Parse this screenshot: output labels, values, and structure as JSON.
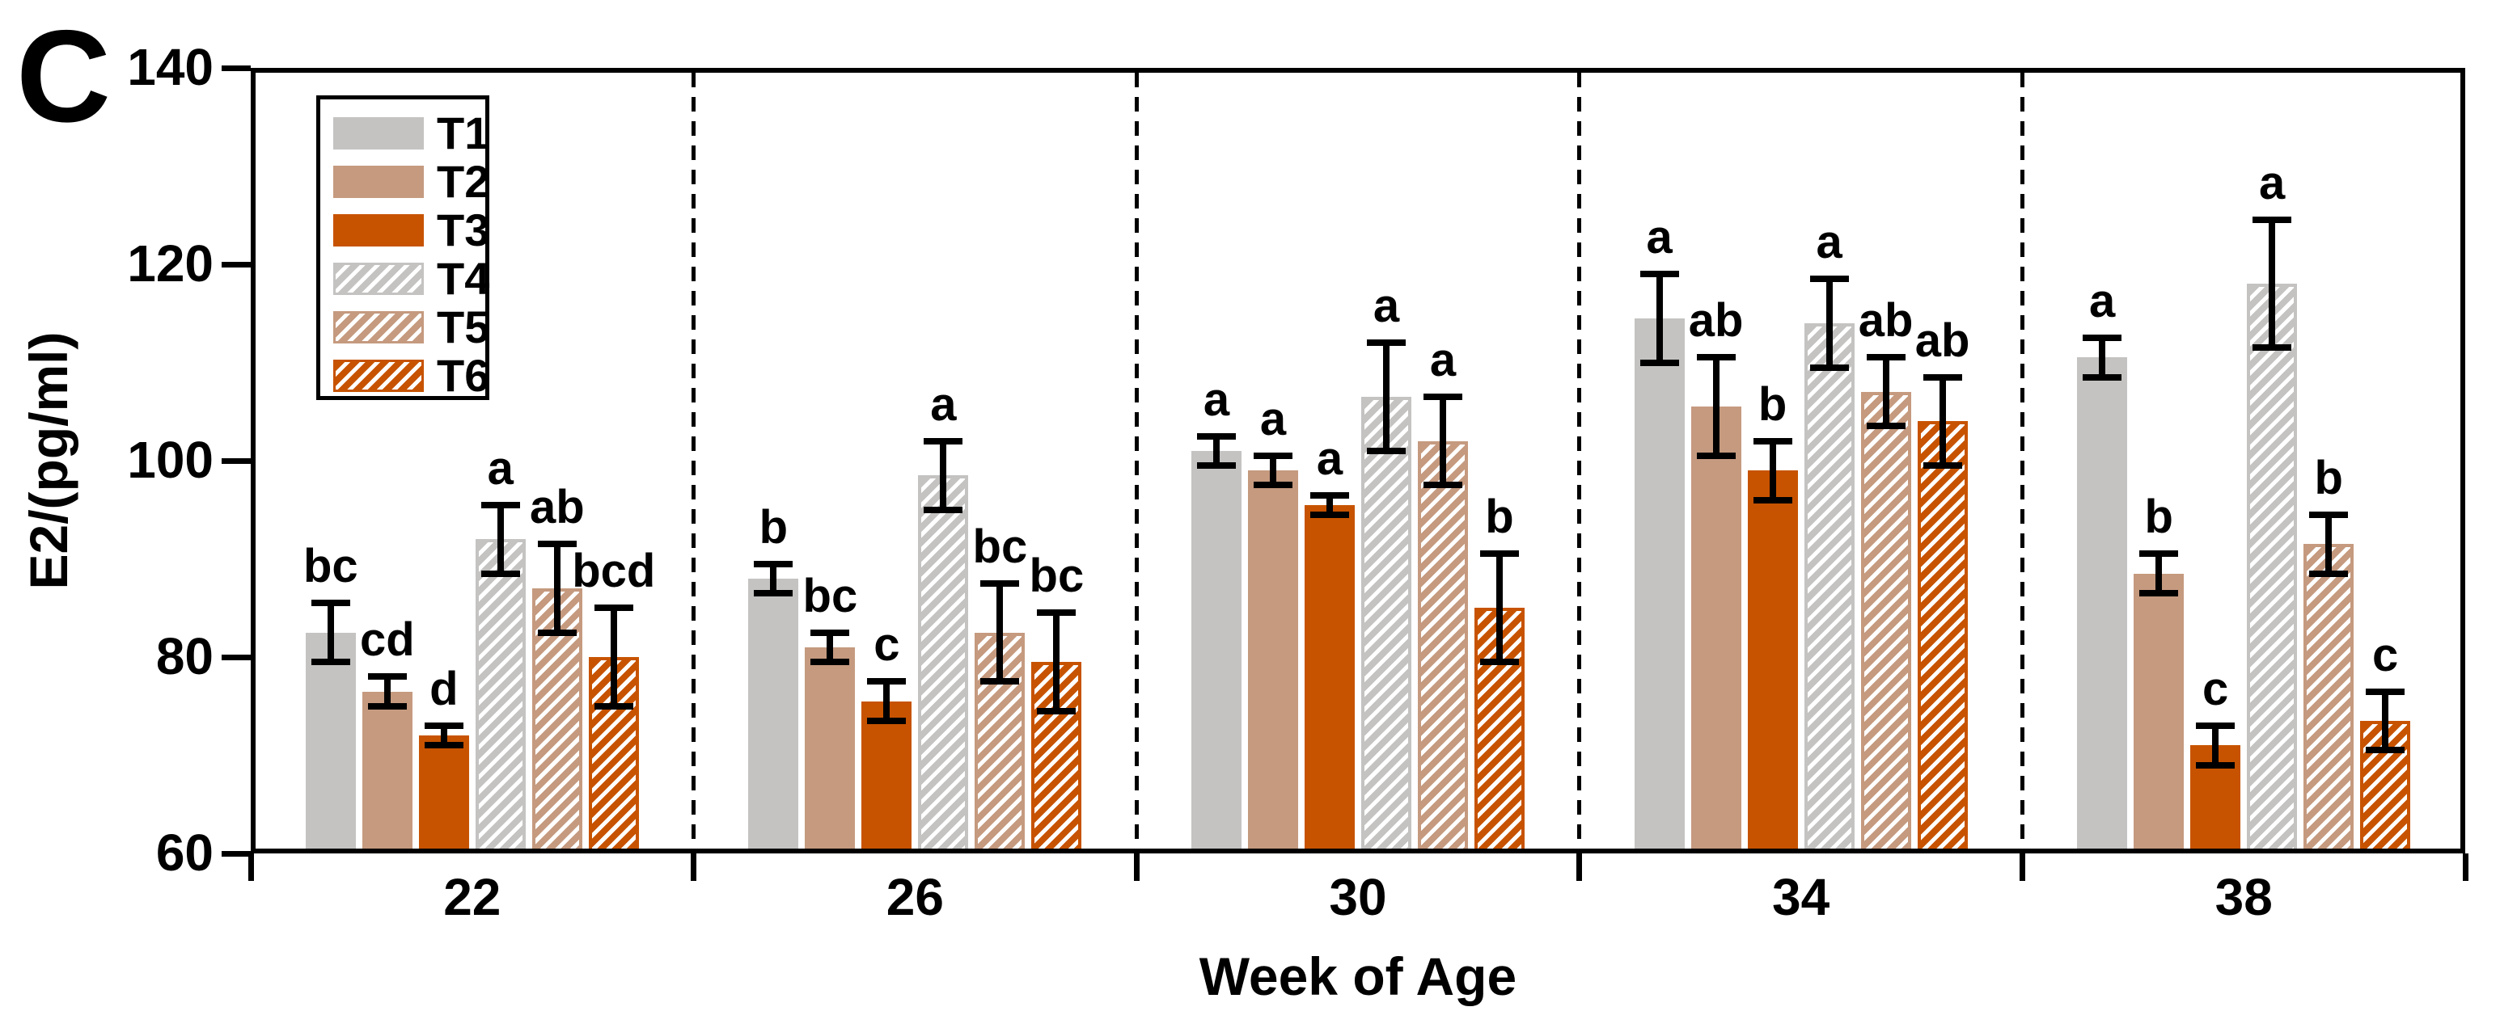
{
  "panel_label": "C",
  "axes": {
    "y_label": "E2/(pg/ml)",
    "x_label": "Week of Age",
    "y_ticks": [
      140,
      120,
      100,
      80,
      60
    ],
    "x_tick_labels": [
      "22",
      "26",
      "30",
      "34",
      "38"
    ]
  },
  "colors": {
    "gray": "#c4c3c2",
    "tan": "#c59a7f",
    "orange": "#c75300",
    "axis": "#000000",
    "hatch_stripe": "#ffffff"
  },
  "chart_data": {
    "type": "bar",
    "title": "",
    "xlabel": "Week of Age",
    "ylabel": "E2/(pg/ml)",
    "categories": [
      "22",
      "26",
      "30",
      "34",
      "38"
    ],
    "ylim": [
      60,
      140
    ],
    "y_tick_step": 20,
    "grid": false,
    "legend_position": "inside-top-left",
    "group_separators": "dashed",
    "error_bars": true,
    "series": [
      {
        "name": "T1",
        "color": "#c4c3c2",
        "hatched": false,
        "values": [
          82.5,
          88,
          101,
          114.5,
          110.5
        ],
        "errors": [
          3,
          1.5,
          1.5,
          4.5,
          2
        ],
        "sig_letters": [
          "bc",
          "b",
          "a",
          "a",
          "a"
        ]
      },
      {
        "name": "T2",
        "color": "#c59a7f",
        "hatched": false,
        "values": [
          76.5,
          81,
          99,
          105.5,
          88.5
        ],
        "errors": [
          1.5,
          1.5,
          1.5,
          5,
          2
        ],
        "sig_letters": [
          "cd",
          "bc",
          "a",
          "ab",
          "b"
        ]
      },
      {
        "name": "T3",
        "color": "#c75300",
        "hatched": false,
        "values": [
          72,
          75.5,
          95.5,
          99,
          71
        ],
        "errors": [
          1,
          2,
          1,
          3,
          2
        ],
        "sig_letters": [
          "d",
          "c",
          "a",
          "b",
          "c"
        ]
      },
      {
        "name": "T4",
        "color": "#c4c3c2",
        "hatched": true,
        "values": [
          92,
          98.5,
          106.5,
          114,
          118
        ],
        "errors": [
          3.5,
          3.5,
          5.5,
          4.5,
          6.5
        ],
        "sig_letters": [
          "a",
          "a",
          "a",
          "a",
          "a"
        ]
      },
      {
        "name": "T5",
        "color": "#c59a7f",
        "hatched": true,
        "values": [
          87,
          82.5,
          102,
          107,
          91.5
        ],
        "errors": [
          4.5,
          5,
          4.5,
          3.5,
          3
        ],
        "sig_letters": [
          "ab",
          "bc",
          "a",
          "ab",
          "b"
        ]
      },
      {
        "name": "T6",
        "color": "#c75300",
        "hatched": true,
        "values": [
          80,
          79.5,
          85,
          104,
          73.5
        ],
        "errors": [
          5,
          5,
          5.5,
          4.5,
          3
        ],
        "sig_letters": [
          "bcd",
          "bc",
          "b",
          "ab",
          "c"
        ]
      }
    ]
  }
}
